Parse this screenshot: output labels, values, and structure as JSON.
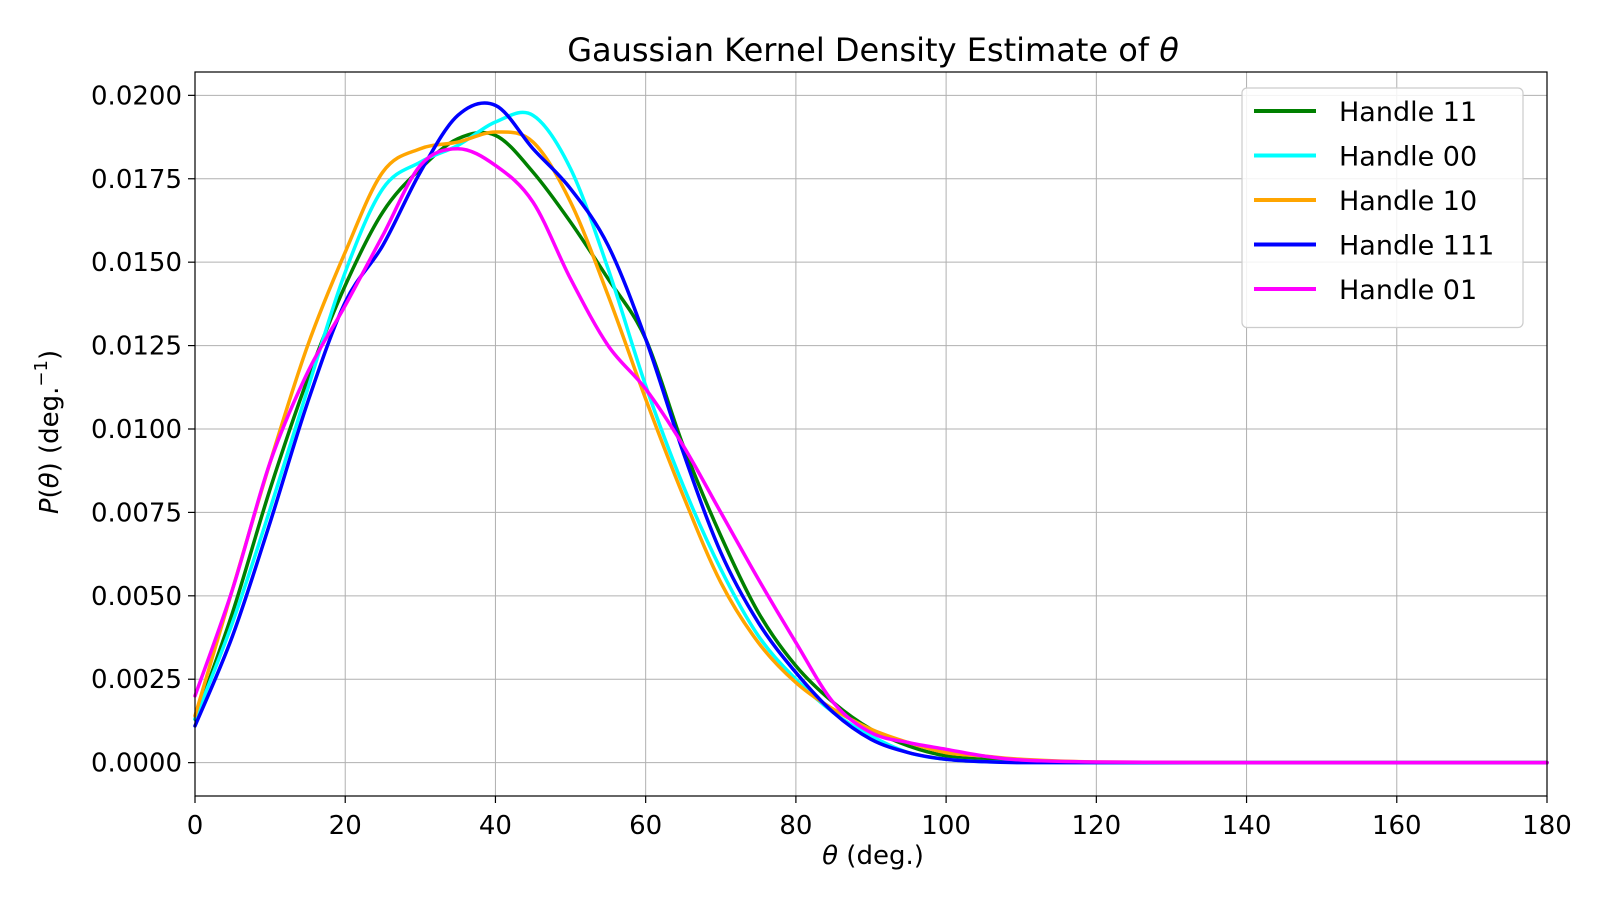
{
  "chart_data": {
    "type": "line",
    "title_main": "Gaussian Kernel Density Estimate of ",
    "title_symbol": "θ",
    "xlabel_symbol": "θ",
    "xlabel_unit": " (deg.)",
    "ylabel_symbol": "P",
    "ylabel_open": "(",
    "ylabel_theta": "θ",
    "ylabel_rest": ") (deg.",
    "ylabel_sup": "−1",
    "ylabel_close": ")",
    "xlim": [
      0,
      180
    ],
    "ylim": [
      -0.001,
      0.0207
    ],
    "xticks": [
      0,
      20,
      40,
      60,
      80,
      100,
      120,
      140,
      160,
      180
    ],
    "yticks": [
      0,
      0.0025,
      0.005,
      0.0075,
      0.01,
      0.0125,
      0.015,
      0.0175,
      0.02
    ],
    "ytick_labels": [
      "0.0000",
      "0.0025",
      "0.0050",
      "0.0075",
      "0.0100",
      "0.0125",
      "0.0150",
      "0.0175",
      "0.0200"
    ],
    "grid": true,
    "legend_position": "top-right",
    "series": [
      {
        "name": "Handle 11",
        "color": "#008000",
        "x": [
          0,
          5,
          10,
          15,
          20,
          25,
          30,
          35,
          40,
          45,
          50,
          55,
          60,
          65,
          70,
          75,
          80,
          85,
          90,
          95,
          100,
          105,
          110,
          120,
          140,
          160,
          180
        ],
        "y": [
          0.0013,
          0.0045,
          0.0082,
          0.0115,
          0.0143,
          0.0165,
          0.0178,
          0.0187,
          0.0188,
          0.0177,
          0.0162,
          0.0145,
          0.0127,
          0.0095,
          0.0068,
          0.0045,
          0.0029,
          0.0018,
          0.001,
          0.0005,
          0.0002,
          0.0001,
          3e-05,
          0,
          0,
          0,
          0
        ]
      },
      {
        "name": "Handle 00",
        "color": "#00ffff",
        "x": [
          0,
          5,
          10,
          15,
          20,
          25,
          30,
          35,
          40,
          45,
          50,
          55,
          60,
          65,
          70,
          75,
          80,
          85,
          90,
          95,
          100,
          105,
          110,
          120,
          140,
          160,
          180
        ],
        "y": [
          0.0013,
          0.0042,
          0.0076,
          0.0112,
          0.0147,
          0.0172,
          0.018,
          0.0185,
          0.0192,
          0.0194,
          0.0178,
          0.0148,
          0.0113,
          0.0083,
          0.0058,
          0.0038,
          0.0025,
          0.0015,
          0.0008,
          0.0003,
          0.0001,
          3e-05,
          1e-05,
          0,
          0,
          0,
          0
        ]
      },
      {
        "name": "Handle 10",
        "color": "#ffa500",
        "x": [
          0,
          5,
          10,
          15,
          20,
          25,
          30,
          35,
          40,
          45,
          50,
          55,
          60,
          65,
          70,
          75,
          80,
          85,
          90,
          95,
          100,
          105,
          110,
          120,
          140,
          160,
          180
        ],
        "y": [
          0.0014,
          0.0052,
          0.009,
          0.0125,
          0.0153,
          0.0177,
          0.0184,
          0.0186,
          0.0189,
          0.0186,
          0.0168,
          0.014,
          0.0109,
          0.008,
          0.0054,
          0.0036,
          0.0024,
          0.0016,
          0.001,
          0.0006,
          0.0003,
          0.0002,
          0.0001,
          2e-05,
          0,
          0,
          0
        ]
      },
      {
        "name": "Handle 111",
        "color": "#0000ff",
        "x": [
          0,
          5,
          10,
          15,
          20,
          25,
          30,
          35,
          40,
          45,
          50,
          55,
          60,
          65,
          70,
          75,
          80,
          85,
          90,
          95,
          100,
          105,
          110,
          120,
          140,
          160,
          180
        ],
        "y": [
          0.0011,
          0.0038,
          0.0072,
          0.0108,
          0.0138,
          0.0155,
          0.0177,
          0.0194,
          0.0197,
          0.0184,
          0.0172,
          0.0155,
          0.0127,
          0.0093,
          0.0063,
          0.0042,
          0.0027,
          0.0015,
          0.0007,
          0.0003,
          0.0001,
          3e-05,
          0,
          0,
          0,
          0,
          0
        ]
      },
      {
        "name": "Handle 01",
        "color": "#ff00ff",
        "x": [
          0,
          5,
          10,
          15,
          20,
          25,
          30,
          35,
          40,
          45,
          50,
          55,
          60,
          65,
          70,
          75,
          80,
          85,
          90,
          95,
          100,
          105,
          110,
          120,
          140,
          160,
          180
        ],
        "y": [
          0.002,
          0.0052,
          0.009,
          0.0117,
          0.0137,
          0.0158,
          0.0179,
          0.0184,
          0.0179,
          0.0168,
          0.0145,
          0.0125,
          0.0112,
          0.0095,
          0.0075,
          0.0055,
          0.0036,
          0.0018,
          0.0009,
          0.0006,
          0.0004,
          0.0002,
          8e-05,
          2e-05,
          0,
          0,
          0
        ]
      }
    ]
  }
}
